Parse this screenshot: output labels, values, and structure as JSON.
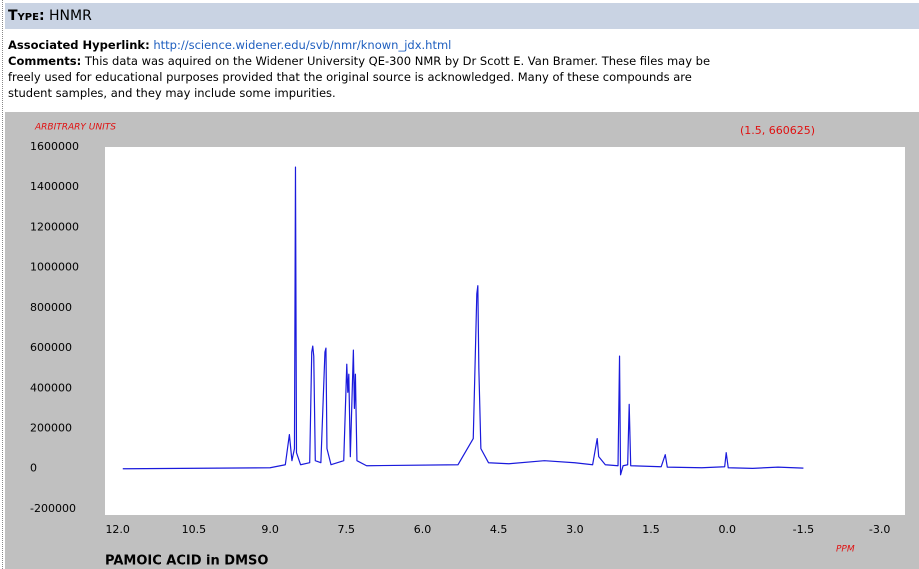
{
  "header": {
    "type_label": "Type:",
    "type_value": "HNMR"
  },
  "hyperlink": {
    "label": "Associated Hyperlink:",
    "url": "http://science.widener.edu/svb/nmr/known_jdx.html"
  },
  "comments": {
    "label": "Comments:",
    "lines": [
      "This data was aquired on the Widener University QE-300 NMR by Dr Scott E. Van Bramer. These files may be",
      "freely used for educational purposes provided that the original source is acknowledged. Many of these compounds are",
      "student samples, and they may include some impurities."
    ]
  },
  "chart_data": {
    "type": "line",
    "title": "PAMOIC ACID in DMSO",
    "y_label": "ARBITRARY UNITS",
    "x_label": "PPM",
    "cursor_readout": "(1.5, 660625)",
    "color": "#1a1adc",
    "x": [
      11.9,
      9.0,
      8.7,
      8.62,
      8.57,
      8.52,
      8.5,
      8.48,
      8.4,
      8.22,
      8.18,
      8.16,
      8.14,
      8.11,
      8.0,
      7.92,
      7.9,
      7.88,
      7.8,
      7.55,
      7.49,
      7.47,
      7.45,
      7.42,
      7.36,
      7.34,
      7.32,
      7.29,
      7.1,
      5.3,
      5.0,
      4.93,
      4.91,
      4.89,
      4.85,
      4.7,
      4.3,
      3.6,
      3.0,
      2.65,
      2.56,
      2.53,
      2.4,
      2.15,
      2.12,
      2.1,
      2.05,
      1.96,
      1.93,
      1.9,
      1.3,
      1.22,
      1.18,
      0.5,
      0.05,
      0.02,
      -0.02,
      -0.5,
      -1.0,
      -1.5
    ],
    "values": [
      0,
      5000,
      20000,
      170000,
      40000,
      100000,
      1500000,
      80000,
      20000,
      30000,
      580000,
      610000,
      560000,
      40000,
      30000,
      580000,
      600000,
      100000,
      20000,
      40000,
      520000,
      380000,
      470000,
      60000,
      590000,
      300000,
      470000,
      40000,
      15000,
      20000,
      150000,
      870000,
      910000,
      500000,
      100000,
      30000,
      25000,
      40000,
      30000,
      20000,
      150000,
      60000,
      20000,
      15000,
      560000,
      -30000,
      15000,
      20000,
      320000,
      15000,
      10000,
      70000,
      8000,
      5000,
      10000,
      80000,
      5000,
      2000,
      8000,
      3000
    ],
    "xlim": [
      12.25,
      -3.5
    ],
    "ylim": [
      -230000,
      1600000
    ],
    "xticks": [
      {
        "value": 12,
        "label": "12.0"
      },
      10.5,
      {
        "value": 9,
        "label": "9.0"
      },
      7.5,
      {
        "value": 6,
        "label": "6.0"
      },
      4.5,
      {
        "value": 3,
        "label": "3.0"
      },
      1.5,
      {
        "value": 0,
        "label": "0.0"
      },
      -1.5,
      {
        "value": -3,
        "label": "-3.0"
      }
    ],
    "yticks": [
      -200000,
      0,
      200000,
      400000,
      600000,
      800000,
      1000000,
      1200000,
      1400000,
      1600000
    ],
    "grid": false
  }
}
